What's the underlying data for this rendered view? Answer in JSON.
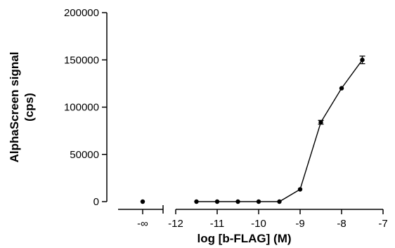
{
  "chart_data": {
    "type": "line",
    "xlabel": "log [b-FLAG] (M)",
    "ylabel_line1": "AlphaScreen signal",
    "ylabel_line2": "(cps)",
    "x_ticks": [
      -12,
      -11,
      -10,
      -9,
      -8,
      -7
    ],
    "x_tick_labels": [
      "-12",
      "-11",
      "-10",
      "-9",
      "-8",
      "-7"
    ],
    "x_break_label": "-∞",
    "xlim": [
      -12,
      -7
    ],
    "ylim": [
      0,
      200000
    ],
    "y_ticks": [
      0,
      50000,
      100000,
      150000,
      200000
    ],
    "y_tick_labels": [
      "0",
      "50000",
      "100000",
      "150000",
      "200000"
    ],
    "grid": false,
    "zero_concentration_point": {
      "x_label": "-∞",
      "y": 0
    },
    "series": [
      {
        "x": [
          -11.5,
          -11,
          -10.5,
          -10,
          -9.5,
          -9,
          -8.5,
          -8,
          -7.5
        ],
        "y": [
          0,
          0,
          0,
          0,
          0,
          13000,
          84000,
          120000,
          150000
        ],
        "error": [
          0,
          0,
          0,
          0,
          0,
          0,
          2000,
          0,
          4000
        ]
      }
    ]
  }
}
